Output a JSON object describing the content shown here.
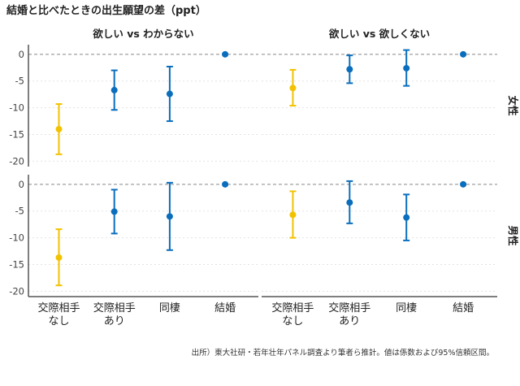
{
  "chart_data": {
    "type": "errorbar",
    "title": "結婚と比べたときの出生願望の差（ppt）",
    "caption": "出所）東大社研・若年壮年パネル調査より筆者ら推計。値は係数および95%信頼区間。",
    "columns": [
      "欲しい vs わからない",
      "欲しい vs 欲しくない"
    ],
    "rows": [
      "女性",
      "男性"
    ],
    "categories": [
      "交際相手\nなし",
      "交際相手\nあり",
      "同棲",
      "結婚"
    ],
    "ylim": [
      -21,
      1.8
    ],
    "yticks": [
      0,
      -5,
      -10,
      -15,
      -20
    ],
    "grid": true,
    "reference_line": 0,
    "colors": {
      "highlight": "#F2C200",
      "default": "#0A6EBD"
    },
    "panels": [
      {
        "row": "女性",
        "column": "欲しい vs わからない",
        "values": [
          -14.0,
          -6.7,
          -7.4,
          0
        ],
        "lower": [
          -18.7,
          -10.4,
          -12.5,
          0
        ],
        "upper": [
          -9.3,
          -3.0,
          -2.3,
          0
        ]
      },
      {
        "row": "女性",
        "column": "欲しい vs 欲しくない",
        "values": [
          -6.3,
          -2.8,
          -2.6,
          0
        ],
        "lower": [
          -9.6,
          -5.4,
          -5.9,
          0
        ],
        "upper": [
          -2.9,
          -0.2,
          0.8,
          0
        ]
      },
      {
        "row": "男性",
        "column": "欲しい vs わからない",
        "values": [
          -13.7,
          -5.1,
          -6.0,
          0
        ],
        "lower": [
          -18.9,
          -9.2,
          -12.3,
          0
        ],
        "upper": [
          -8.4,
          -1.0,
          0.3,
          0
        ]
      },
      {
        "row": "男性",
        "column": "欲しい vs 欲しくない",
        "values": [
          -5.7,
          -3.4,
          -6.2,
          0
        ],
        "lower": [
          -10.0,
          -7.3,
          -10.5,
          0
        ],
        "upper": [
          -1.3,
          0.6,
          -1.9,
          0
        ]
      }
    ]
  }
}
